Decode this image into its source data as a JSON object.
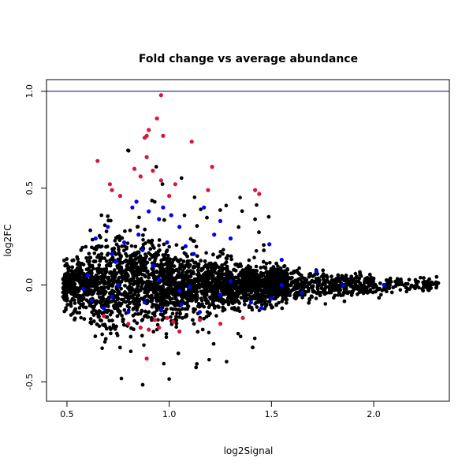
{
  "chart_data": {
    "type": "scatter",
    "title": "Fold change vs average abundance",
    "xlabel": "log2Signal",
    "ylabel": "log2FC",
    "xlim": [
      0.4,
      2.37
    ],
    "ylim": [
      -0.6,
      1.06
    ],
    "xticks": [
      0.5,
      1.0,
      1.5,
      2.0
    ],
    "xtick_labels": [
      "0.5",
      "1.0",
      "1.5",
      "2.0"
    ],
    "yticks": [
      -0.5,
      0.0,
      0.5,
      1.0
    ],
    "ytick_labels": [
      "-0.5",
      "0.0",
      "0.5",
      "1.0"
    ],
    "reference_line_y": 1.0,
    "grid": false,
    "legend": "none",
    "colors": {
      "background": "#000000",
      "blue": "#0000ff",
      "red": "#dc143c",
      "refline": "#000080"
    },
    "series": [
      {
        "color": "#dc143c",
        "points": [
          [
            0.65,
            0.64
          ],
          [
            0.71,
            0.52
          ],
          [
            0.72,
            0.49
          ],
          [
            0.76,
            0.46
          ],
          [
            0.83,
            0.6
          ],
          [
            0.86,
            0.56
          ],
          [
            0.88,
            0.76
          ],
          [
            0.89,
            0.77
          ],
          [
            0.89,
            0.66
          ],
          [
            0.9,
            0.8
          ],
          [
            0.92,
            0.59
          ],
          [
            0.94,
            0.86
          ],
          [
            0.96,
            0.98
          ],
          [
            0.96,
            0.54
          ],
          [
            0.97,
            0.77
          ],
          [
            1.0,
            0.46
          ],
          [
            1.03,
            0.52
          ],
          [
            1.11,
            0.74
          ],
          [
            1.19,
            0.49
          ],
          [
            1.21,
            0.61
          ],
          [
            1.42,
            0.49
          ],
          [
            1.44,
            0.47
          ],
          [
            0.68,
            -0.16
          ],
          [
            0.8,
            -0.2
          ],
          [
            0.86,
            -0.22
          ],
          [
            0.89,
            -0.38
          ],
          [
            0.9,
            -0.23
          ],
          [
            0.93,
            -0.18
          ],
          [
            0.95,
            -0.22
          ],
          [
            0.99,
            -0.17
          ],
          [
            1.02,
            -0.19
          ],
          [
            1.05,
            -0.24
          ],
          [
            1.15,
            -0.18
          ],
          [
            1.25,
            -0.2
          ],
          [
            1.36,
            -0.17
          ]
        ]
      },
      {
        "color": "#0000ff",
        "points": [
          [
            0.64,
            0.24
          ],
          [
            0.7,
            0.3
          ],
          [
            0.72,
            0.16
          ],
          [
            0.74,
            0.12
          ],
          [
            0.78,
            0.22
          ],
          [
            0.82,
            0.4
          ],
          [
            0.84,
            0.43
          ],
          [
            0.85,
            0.26
          ],
          [
            0.87,
            0.18
          ],
          [
            0.9,
            0.38
          ],
          [
            0.92,
            0.1
          ],
          [
            0.95,
            0.34
          ],
          [
            0.97,
            0.4
          ],
          [
            0.99,
            0.22
          ],
          [
            1.01,
            0.36
          ],
          [
            1.05,
            0.3
          ],
          [
            1.08,
            0.2
          ],
          [
            1.12,
            0.16
          ],
          [
            1.17,
            0.4
          ],
          [
            1.22,
            0.26
          ],
          [
            1.25,
            0.33
          ],
          [
            1.3,
            0.24
          ],
          [
            1.49,
            0.21
          ],
          [
            1.55,
            0.13
          ],
          [
            1.72,
            0.07
          ],
          [
            0.6,
            0.05
          ],
          [
            0.75,
            0.0
          ],
          [
            0.95,
            0.03
          ],
          [
            1.05,
            -0.03
          ],
          [
            1.3,
            0.02
          ],
          [
            1.55,
            0.0
          ],
          [
            1.85,
            0.0
          ],
          [
            2.05,
            0.0
          ],
          [
            0.62,
            -0.08
          ],
          [
            0.68,
            -0.12
          ],
          [
            0.72,
            -0.06
          ],
          [
            0.8,
            -0.14
          ],
          [
            0.88,
            -0.09
          ],
          [
            0.96,
            -0.13
          ],
          [
            1.06,
            -0.1
          ],
          [
            1.15,
            -0.14
          ],
          [
            1.25,
            -0.05
          ],
          [
            1.4,
            -0.09
          ],
          [
            1.5,
            -0.07
          ],
          [
            1.65,
            -0.04
          ],
          [
            0.58,
            -0.02
          ],
          [
            1.1,
            -0.01
          ],
          [
            1.45,
            -0.12
          ]
        ]
      }
    ],
    "background_cloud": {
      "count": 5200,
      "note_color": "#000000"
    }
  }
}
